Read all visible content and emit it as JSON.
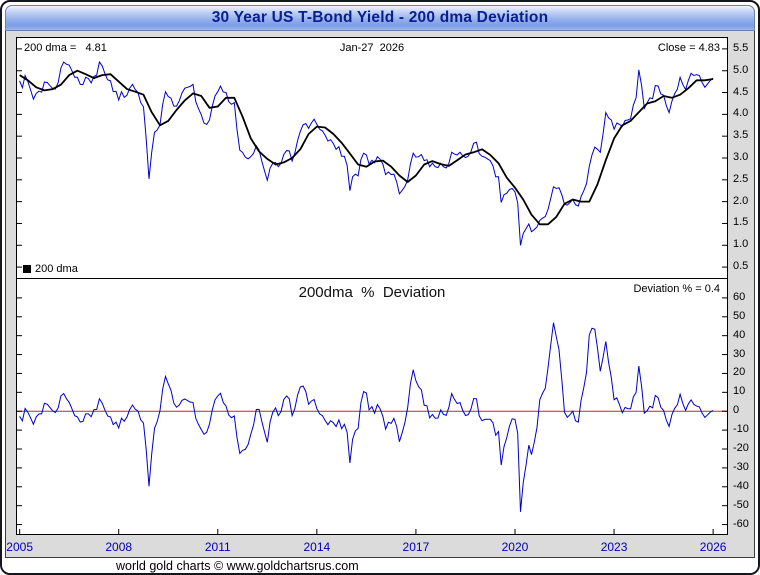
{
  "header": {
    "title": "30 Year US T-Bond Yield - 200 dma Deviation"
  },
  "footer": {
    "credit": "world gold charts © www.goldchartsrus.com"
  },
  "top_chart": {
    "left_label": "200 dma =   4.81",
    "center_label": "Jan-27  2026",
    "right_label": "Close = 4.83",
    "legend_label": "200 dma"
  },
  "bottom_chart": {
    "title": "200dma  %  Deviation",
    "right_label": "Deviation % = 0.4"
  },
  "colors": {
    "yield_line": "#0000cc",
    "ma_line": "#000000",
    "deviation_line": "#0000cc",
    "zero_line": "#cc2222",
    "year_labels": "#0000b4",
    "title_text": "#0a1e90"
  },
  "chart_data": [
    {
      "type": "line",
      "title": "30 Year US T-Bond Yield",
      "annotations": {
        "ma_200": 4.81,
        "close": 4.83,
        "as_of": "Jan-27 2026"
      },
      "legend": [
        {
          "label": "200 dma",
          "color": "#000000",
          "position": "bottom-left"
        }
      ],
      "grid": false,
      "x_axis": {
        "min": 2004.92,
        "max": 2026.42,
        "ticks": [
          2005,
          2008,
          2011,
          2014,
          2017,
          2020,
          2023,
          2026
        ]
      },
      "y_axis": {
        "min": 0.25,
        "max": 5.75,
        "side": "right",
        "decimals": 1,
        "ticks": [
          5.5,
          5.0,
          4.5,
          4.0,
          3.5,
          3.0,
          2.5,
          2.0,
          1.5,
          1.0,
          0.5
        ]
      },
      "series": [
        {
          "name": "30y_yield",
          "color": "#0000cc",
          "width": 1,
          "x_start": 2005.0,
          "x_step": 0.0833333333,
          "values": [
            4.77,
            4.61,
            4.89,
            4.75,
            4.56,
            4.35,
            4.48,
            4.53,
            4.51,
            4.74,
            4.73,
            4.66,
            4.59,
            4.58,
            4.73,
            5.06,
            5.2,
            5.15,
            5.13,
            5.0,
            4.85,
            4.85,
            4.69,
            4.68,
            4.85,
            4.82,
            4.72,
            4.87,
            4.9,
            5.2,
            5.11,
            4.93,
            4.79,
            4.77,
            4.52,
            4.53,
            4.33,
            4.52,
            4.39,
            4.44,
            4.6,
            4.69,
            4.57,
            4.5,
            4.27,
            4.17,
            3.44,
            2.52,
            3.13,
            3.59,
            3.64,
            3.76,
            4.23,
            4.52,
            4.41,
            4.37,
            4.19,
            4.19,
            4.31,
            4.49,
            4.6,
            4.62,
            4.64,
            4.69,
            4.29,
            4.13,
            3.99,
            3.8,
            3.77,
            3.87,
            4.19,
            4.42,
            4.52,
            4.65,
            4.51,
            4.5,
            4.29,
            4.23,
            4.27,
            3.65,
            3.18,
            3.13,
            3.02,
            2.98,
            3.03,
            3.11,
            3.28,
            3.18,
            2.93,
            2.7,
            2.49,
            2.77,
            2.88,
            2.9,
            2.8,
            2.88,
            3.08,
            3.17,
            3.16,
            2.93,
            3.11,
            3.4,
            3.61,
            3.76,
            3.79,
            3.68,
            3.8,
            3.89,
            3.77,
            3.66,
            3.62,
            3.52,
            3.39,
            3.42,
            3.33,
            3.2,
            3.26,
            3.04,
            3.04,
            2.83,
            2.25,
            2.57,
            2.63,
            2.59,
            2.96,
            3.11,
            3.07,
            2.86,
            2.95,
            2.89,
            3.03,
            2.97,
            2.86,
            2.62,
            2.68,
            2.62,
            2.63,
            2.45,
            2.18,
            2.26,
            2.35,
            2.5,
            2.86,
            3.11,
            3.02,
            3.03,
            3.08,
            2.94,
            2.96,
            2.8,
            2.88,
            2.8,
            2.78,
            2.88,
            2.8,
            2.77,
            2.88,
            3.13,
            3.09,
            3.07,
            3.13,
            3.05,
            3.01,
            3.04,
            3.15,
            3.34,
            3.36,
            3.1,
            3.04,
            3.02,
            2.98,
            2.94,
            2.82,
            2.57,
            2.57,
            1.98,
            2.16,
            2.19,
            2.28,
            2.3,
            2.22,
            1.97,
            1.0,
            1.27,
            1.38,
            1.49,
            1.31,
            1.36,
            1.42,
            1.57,
            1.62,
            1.66,
            1.82,
            2.08,
            2.34,
            2.3,
            2.32,
            2.16,
            1.94,
            1.92,
            1.98,
            2.05,
            1.93,
            1.9,
            2.11,
            2.25,
            2.41,
            2.81,
            3.07,
            3.25,
            3.2,
            3.13,
            3.56,
            4.04,
            3.92,
            3.87,
            3.66,
            3.8,
            3.77,
            3.72,
            3.86,
            3.87,
            3.9,
            4.21,
            4.38,
            5.02,
            4.66,
            4.14,
            4.26,
            4.38,
            4.36,
            4.66,
            4.65,
            4.47,
            4.44,
            4.2,
            4.04,
            4.3,
            4.47,
            4.58,
            4.85,
            4.68,
            4.57,
            4.78,
            4.94,
            4.89,
            4.91,
            4.89,
            4.73,
            4.62,
            4.7,
            4.78,
            4.83
          ]
        },
        {
          "name": "200_dma",
          "color": "#000000",
          "width": 1.8,
          "x_start": 2005.0,
          "x_step": 0.25,
          "values": [
            4.9,
            4.78,
            4.62,
            4.55,
            4.58,
            4.68,
            4.9,
            5.0,
            4.92,
            4.83,
            4.9,
            4.92,
            4.75,
            4.58,
            4.52,
            4.45,
            4.05,
            3.75,
            3.85,
            4.1,
            4.32,
            4.48,
            4.42,
            4.15,
            4.18,
            4.38,
            4.38,
            3.95,
            3.45,
            3.15,
            2.98,
            2.85,
            2.9,
            3.0,
            3.2,
            3.55,
            3.72,
            3.7,
            3.55,
            3.35,
            3.1,
            2.85,
            2.8,
            2.92,
            2.94,
            2.8,
            2.6,
            2.45,
            2.6,
            2.85,
            2.93,
            2.86,
            2.82,
            2.95,
            3.08,
            3.13,
            3.2,
            3.07,
            2.88,
            2.55,
            2.32,
            2.05,
            1.7,
            1.48,
            1.48,
            1.65,
            1.95,
            2.05,
            2.0,
            2.0,
            2.4,
            2.95,
            3.45,
            3.75,
            3.85,
            4.05,
            4.25,
            4.3,
            4.42,
            4.38,
            4.45,
            4.6,
            4.78,
            4.78,
            4.81
          ]
        }
      ]
    },
    {
      "type": "line",
      "title": "200dma % Deviation",
      "latest_deviation_pct": 0.4,
      "grid": false,
      "x_axis": {
        "min": 2004.92,
        "max": 2026.42,
        "ticks": [
          2005,
          2008,
          2011,
          2014,
          2017,
          2020,
          2023,
          2026
        ]
      },
      "y_axis": {
        "min": -65,
        "max": 70,
        "side": "right",
        "decimals": 0,
        "ticks": [
          60,
          50,
          40,
          30,
          20,
          10,
          0,
          -10,
          -20,
          -30,
          -40,
          -50,
          -60
        ]
      },
      "zero_line": {
        "value": 0,
        "color": "#cc2222"
      },
      "series": [
        {
          "name": "deviation_pct",
          "color": "#0000cc",
          "width": 1,
          "derived": "(30y_yield - 200_dma) / 200_dma * 100",
          "from": [
            "30y_yield",
            "200_dma"
          ]
        }
      ]
    }
  ]
}
